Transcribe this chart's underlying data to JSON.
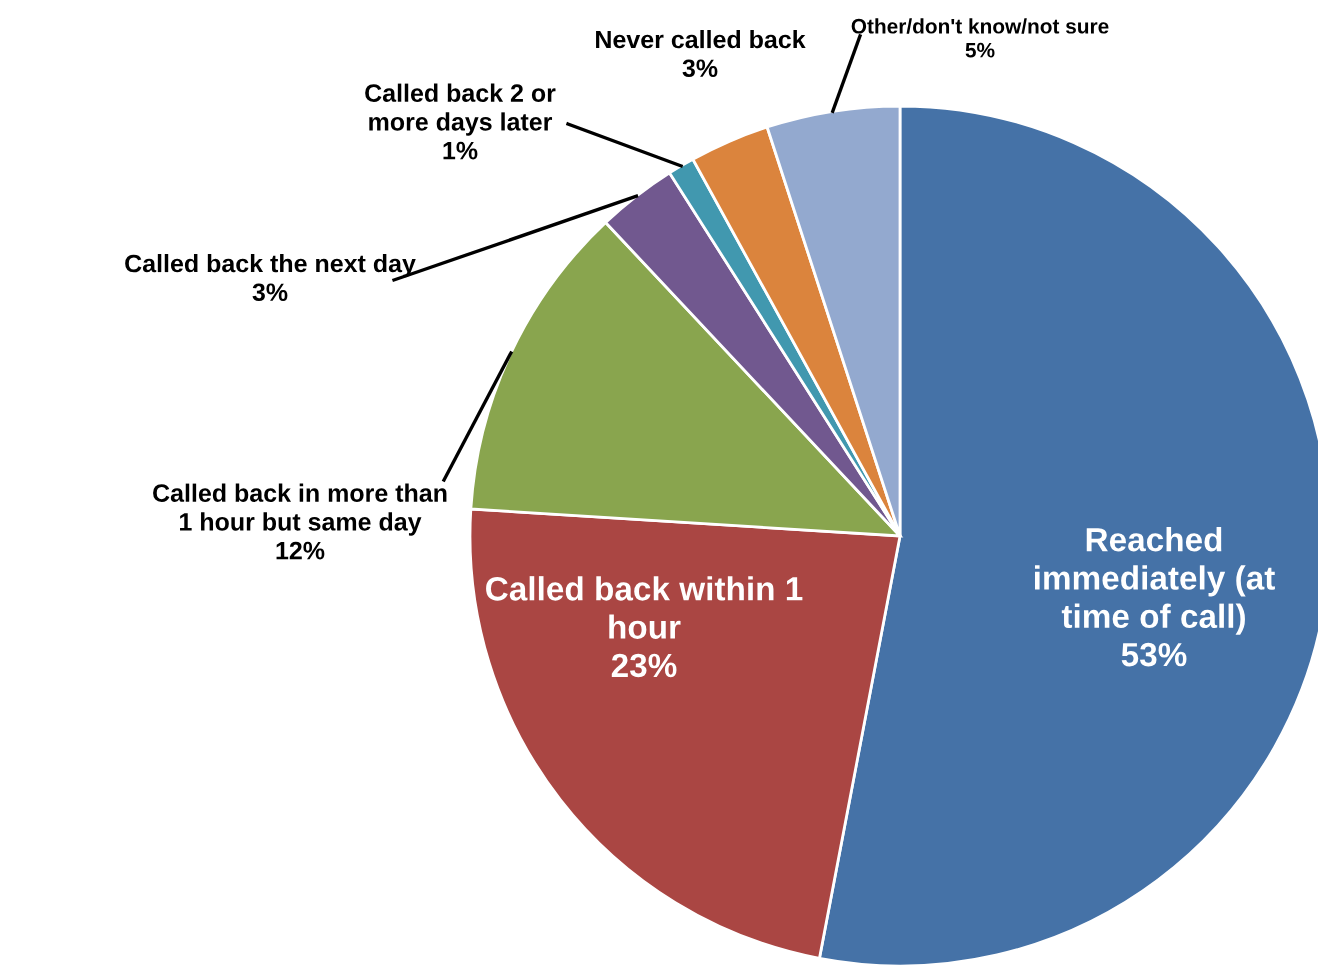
{
  "chart_data": {
    "type": "pie",
    "categories": [
      "Reached\nimmediately (at\ntime of call)",
      "Called back within 1\nhour",
      "Called back in more than\n1 hour but same day",
      "Called back the next day",
      "Called back 2 or\nmore days later",
      "Never called back",
      "Other/don't know/not sure"
    ],
    "values": [
      53,
      23,
      12,
      3,
      1,
      3,
      5
    ],
    "value_labels": [
      "53%",
      "23%",
      "12%",
      "3%",
      "1%",
      "3%",
      "5%"
    ],
    "colors": [
      "#4572a7",
      "#aa4643",
      "#89a54e",
      "#71588f",
      "#4198af",
      "#db843d",
      "#93a9cf"
    ],
    "legend": false
  }
}
